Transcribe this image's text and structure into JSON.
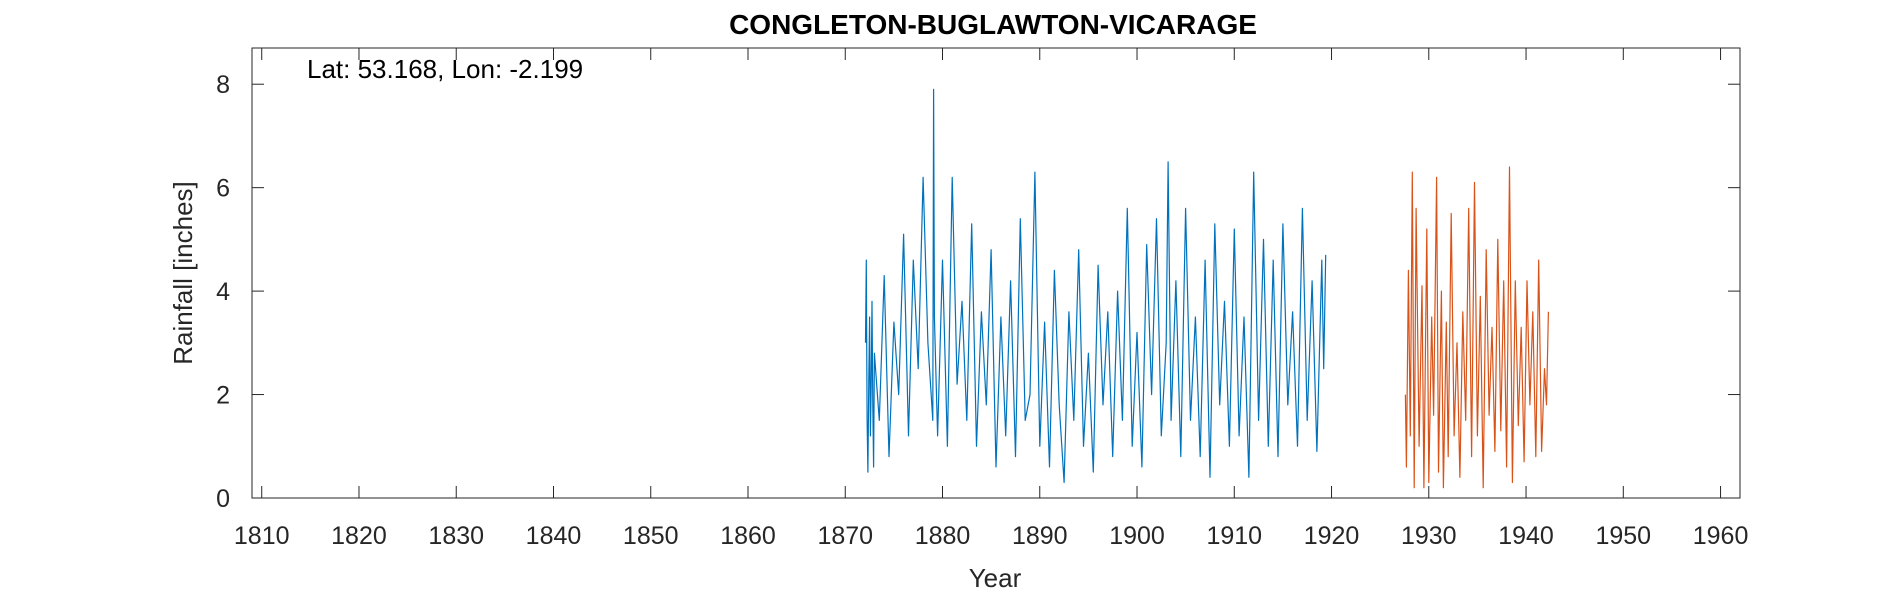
{
  "chart_data": {
    "type": "line",
    "title": "CONGLETON-BUGLAWTON-VICARAGE",
    "xlabel": "Year",
    "ylabel": "Rainfall [inches]",
    "annotation": "Lat: 53.168, Lon: -2.199",
    "xlim": [
      1809,
      1962
    ],
    "ylim": [
      0,
      8.7
    ],
    "xticks": [
      1810,
      1820,
      1830,
      1840,
      1850,
      1860,
      1870,
      1880,
      1890,
      1900,
      1910,
      1920,
      1930,
      1940,
      1950,
      1960
    ],
    "yticks": [
      0,
      2,
      4,
      6,
      8
    ],
    "grid": false,
    "box": true,
    "series": [
      {
        "color": "#0072BD",
        "x": [
          1872.083,
          1872.167,
          1872.25,
          1872.333,
          1872.417,
          1872.5,
          1872.583,
          1872.667,
          1872.75,
          1872.833,
          1872.917,
          1873.0,
          1873.5,
          1874.0,
          1874.5,
          1875.0,
          1875.5,
          1876.0,
          1876.5,
          1877.0,
          1877.5,
          1878.0,
          1878.5,
          1879.0,
          1879.083,
          1879.167,
          1879.5,
          1880.0,
          1880.5,
          1881.0,
          1881.5,
          1882.0,
          1882.5,
          1883.0,
          1883.5,
          1884.0,
          1884.5,
          1885.0,
          1885.5,
          1886.0,
          1886.5,
          1887.0,
          1887.5,
          1888.0,
          1888.5,
          1889.0,
          1889.5,
          1890.0,
          1890.5,
          1891.0,
          1891.5,
          1892.0,
          1892.5,
          1893.0,
          1893.5,
          1894.0,
          1894.5,
          1895.0,
          1895.5,
          1896.0,
          1896.5,
          1897.0,
          1897.5,
          1898.0,
          1898.5,
          1899.0,
          1899.5,
          1900.0,
          1900.5,
          1901.0,
          1901.5,
          1902.0,
          1902.5,
          1903.0,
          1903.2,
          1903.5,
          1904.0,
          1904.5,
          1905.0,
          1905.5,
          1906.0,
          1906.5,
          1907.0,
          1907.5,
          1908.0,
          1908.5,
          1909.0,
          1909.5,
          1910.0,
          1910.5,
          1911.0,
          1911.5,
          1912.0,
          1912.5,
          1913.0,
          1913.5,
          1914.0,
          1914.5,
          1915.0,
          1915.5,
          1916.0,
          1916.5,
          1917.0,
          1917.5,
          1918.0,
          1918.5,
          1919.0,
          1919.2,
          1919.4
        ],
        "values": [
          3.0,
          4.6,
          1.5,
          0.5,
          2.3,
          3.5,
          1.2,
          2.2,
          3.8,
          1.8,
          0.6,
          2.8,
          1.5,
          4.3,
          0.8,
          3.4,
          2.0,
          5.1,
          1.2,
          4.6,
          2.5,
          6.2,
          3.0,
          1.5,
          7.9,
          3.5,
          1.2,
          4.6,
          1.0,
          6.2,
          2.2,
          3.8,
          1.5,
          5.3,
          1.0,
          3.6,
          1.8,
          4.8,
          0.6,
          3.5,
          1.2,
          4.2,
          0.8,
          5.4,
          1.5,
          2.0,
          6.3,
          1.0,
          3.4,
          0.6,
          4.4,
          1.8,
          0.3,
          3.6,
          1.5,
          4.8,
          1.0,
          2.8,
          0.5,
          4.5,
          1.8,
          3.6,
          0.8,
          4.0,
          1.5,
          5.6,
          1.0,
          3.2,
          0.6,
          4.9,
          2.0,
          5.4,
          1.2,
          3.0,
          6.5,
          1.5,
          4.2,
          0.8,
          5.6,
          1.5,
          3.5,
          0.8,
          4.6,
          0.4,
          5.3,
          1.8,
          3.8,
          1.0,
          5.2,
          1.2,
          3.5,
          0.4,
          6.3,
          1.5,
          5.0,
          1.0,
          4.6,
          0.8,
          5.3,
          1.8,
          3.6,
          1.0,
          5.6,
          1.5,
          4.2,
          0.9,
          4.6,
          2.5,
          4.7
        ]
      },
      {
        "color": "#D95319",
        "x": [
          1927.6,
          1927.7,
          1927.9,
          1928.1,
          1928.3,
          1928.5,
          1928.7,
          1929.0,
          1929.3,
          1929.5,
          1929.8,
          1930.0,
          1930.3,
          1930.5,
          1930.8,
          1931.0,
          1931.3,
          1931.5,
          1931.8,
          1932.0,
          1932.3,
          1932.6,
          1932.9,
          1933.2,
          1933.5,
          1933.8,
          1934.1,
          1934.4,
          1934.7,
          1935.0,
          1935.3,
          1935.6,
          1935.9,
          1936.2,
          1936.5,
          1936.8,
          1937.1,
          1937.4,
          1937.7,
          1938.0,
          1938.3,
          1938.6,
          1938.9,
          1939.2,
          1939.5,
          1939.8,
          1940.1,
          1940.4,
          1940.7,
          1941.0,
          1941.3,
          1941.6,
          1941.9,
          1942.1,
          1942.3
        ],
        "values": [
          2.0,
          0.6,
          4.4,
          1.2,
          6.3,
          0.2,
          5.6,
          1.0,
          4.1,
          0.2,
          5.2,
          0.3,
          3.5,
          1.6,
          6.2,
          0.5,
          4.0,
          0.2,
          3.4,
          0.8,
          5.5,
          1.2,
          3.0,
          0.4,
          3.6,
          1.5,
          5.6,
          0.8,
          6.1,
          1.2,
          3.9,
          0.2,
          4.8,
          1.6,
          3.3,
          0.9,
          5.0,
          1.3,
          4.2,
          0.6,
          6.4,
          0.3,
          4.2,
          1.4,
          3.3,
          0.7,
          4.2,
          1.8,
          3.6,
          0.8,
          4.6,
          0.9,
          2.5,
          1.8,
          3.6
        ]
      }
    ]
  }
}
